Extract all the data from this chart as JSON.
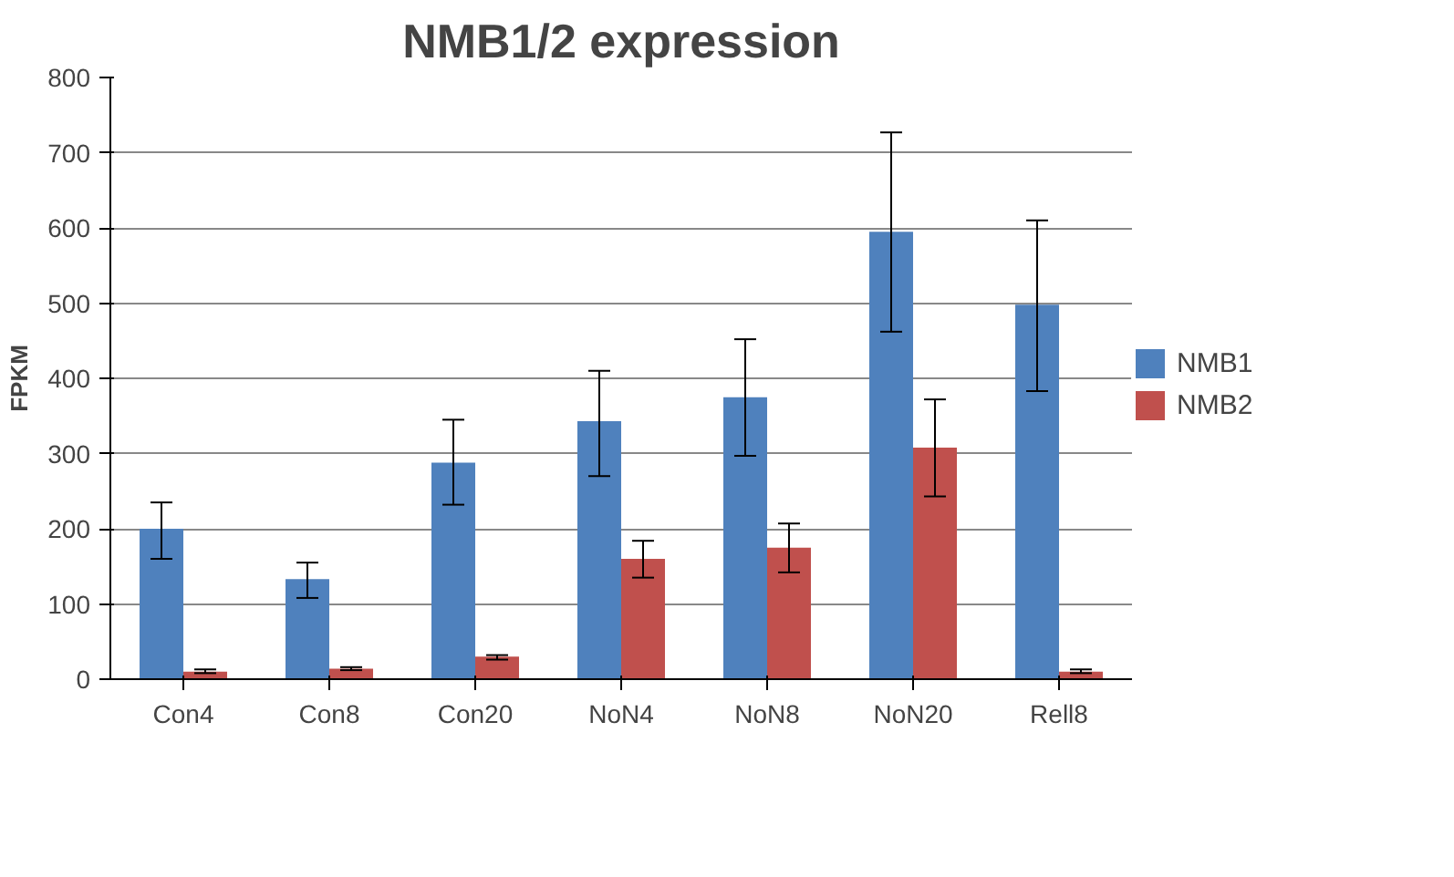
{
  "chart_data": {
    "type": "bar",
    "title": "NMB1/2 expression",
    "ylabel": "FPKM",
    "categories": [
      "Con4",
      "Con8",
      "Con20",
      "NoN4",
      "NoN8",
      "NoN20",
      "Rell8"
    ],
    "series": [
      {
        "name": "NMB1",
        "color": "#4f81bd",
        "values": [
          200,
          133,
          288,
          343,
          375,
          595,
          498
        ],
        "errors": [
          [
            160,
            235
          ],
          [
            108,
            155
          ],
          [
            232,
            345
          ],
          [
            270,
            410
          ],
          [
            297,
            452
          ],
          [
            462,
            727
          ],
          [
            383,
            610
          ]
        ]
      },
      {
        "name": "NMB2",
        "color": "#c0504d",
        "values": [
          10,
          14,
          30,
          160,
          175,
          308,
          10
        ],
        "errors": [
          [
            8,
            13
          ],
          [
            12,
            16
          ],
          [
            26,
            32
          ],
          [
            135,
            184
          ],
          [
            142,
            207
          ],
          [
            243,
            372
          ],
          [
            8,
            13
          ]
        ]
      }
    ],
    "ylim": [
      0,
      800
    ],
    "yticks": [
      0,
      100,
      200,
      300,
      400,
      500,
      600,
      700,
      800
    ],
    "grid": "y",
    "legend": "right"
  }
}
